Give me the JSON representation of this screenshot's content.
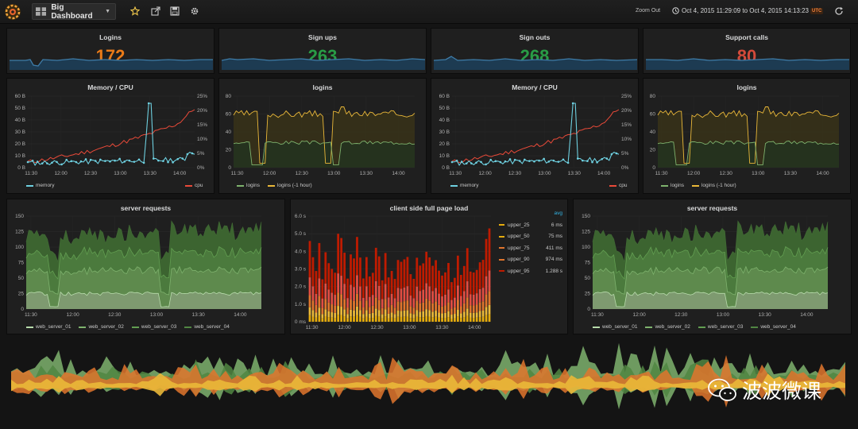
{
  "topbar": {
    "dashboard_title": "Big Dashboard",
    "zoom_out": "Zoom Out",
    "time_range": "Oct 4, 2015 11:29:09 to Oct 4, 2015 14:13:23",
    "timezone": "UTC"
  },
  "stats": [
    {
      "title": "Logins",
      "value": "172",
      "color": "#eb7b18"
    },
    {
      "title": "Sign ups",
      "value": "263",
      "color": "#299c46"
    },
    {
      "title": "Sign outs",
      "value": "268",
      "color": "#299c46"
    },
    {
      "title": "Support calls",
      "value": "80",
      "color": "#d44a3a"
    }
  ],
  "graphs": {
    "memcpu_title": "Memory / CPU",
    "logins_title": "logins",
    "memcpu_left_axis": [
      "60 B",
      "50 B",
      "40 B",
      "30 B",
      "20 B",
      "10 B",
      "0 B"
    ],
    "memcpu_right_axis": [
      "25%",
      "20%",
      "15%",
      "10%",
      "5%",
      "0%"
    ],
    "logins_axis": [
      "80",
      "60",
      "40",
      "20",
      "0"
    ],
    "small_time_axis": [
      "11:30",
      "12:00",
      "12:30",
      "13:00",
      "13:30",
      "14:00"
    ],
    "memcpu_legend": {
      "memory": "memory",
      "cpu": "cpu"
    },
    "logins_legend": {
      "logins": "logins",
      "prev": "logins (-1 hour)"
    },
    "server_title": "server requests",
    "server_axis": [
      "150",
      "125",
      "100",
      "75",
      "50",
      "25",
      "0"
    ],
    "server_time_axis": [
      "11:30",
      "12:00",
      "12:30",
      "13:00",
      "13:30",
      "14:00"
    ],
    "server_legend": [
      "web_server_01",
      "web_server_02",
      "web_server_03",
      "web_server_04"
    ],
    "client_title": "client side full page load",
    "client_axis": [
      "6.0 s",
      "5.0 s",
      "4.0 s",
      "3.0 s",
      "2.0 s",
      "1.0 s",
      "0 ms"
    ],
    "client_time_axis": [
      "11:30",
      "12:00",
      "12:30",
      "13:00",
      "13:30",
      "14:00"
    ],
    "client_legend_header": "avg",
    "client_legend": [
      {
        "name": "upper_25",
        "value": "6 ms",
        "color": "#e5ac0e"
      },
      {
        "name": "upper_50",
        "value": "75 ms",
        "color": "#e5ac0e"
      },
      {
        "name": "upper_75",
        "value": "411 ms",
        "color": "#e0752d"
      },
      {
        "name": "upper_90",
        "value": "974 ms",
        "color": "#e0752d"
      },
      {
        "name": "upper_95",
        "value": "1.288 s",
        "color": "#bf1b00"
      }
    ]
  },
  "colors": {
    "memory": "#6ed0e0",
    "cpu": "#ea4a39",
    "logins": "#7eb26d",
    "logins_prev": "#eab839",
    "server_light": "#b7dbab",
    "server_mid": "#7eb26d",
    "server_dark": "#508642",
    "server_darker": "#3f6833"
  },
  "watermark": "波波微课"
}
